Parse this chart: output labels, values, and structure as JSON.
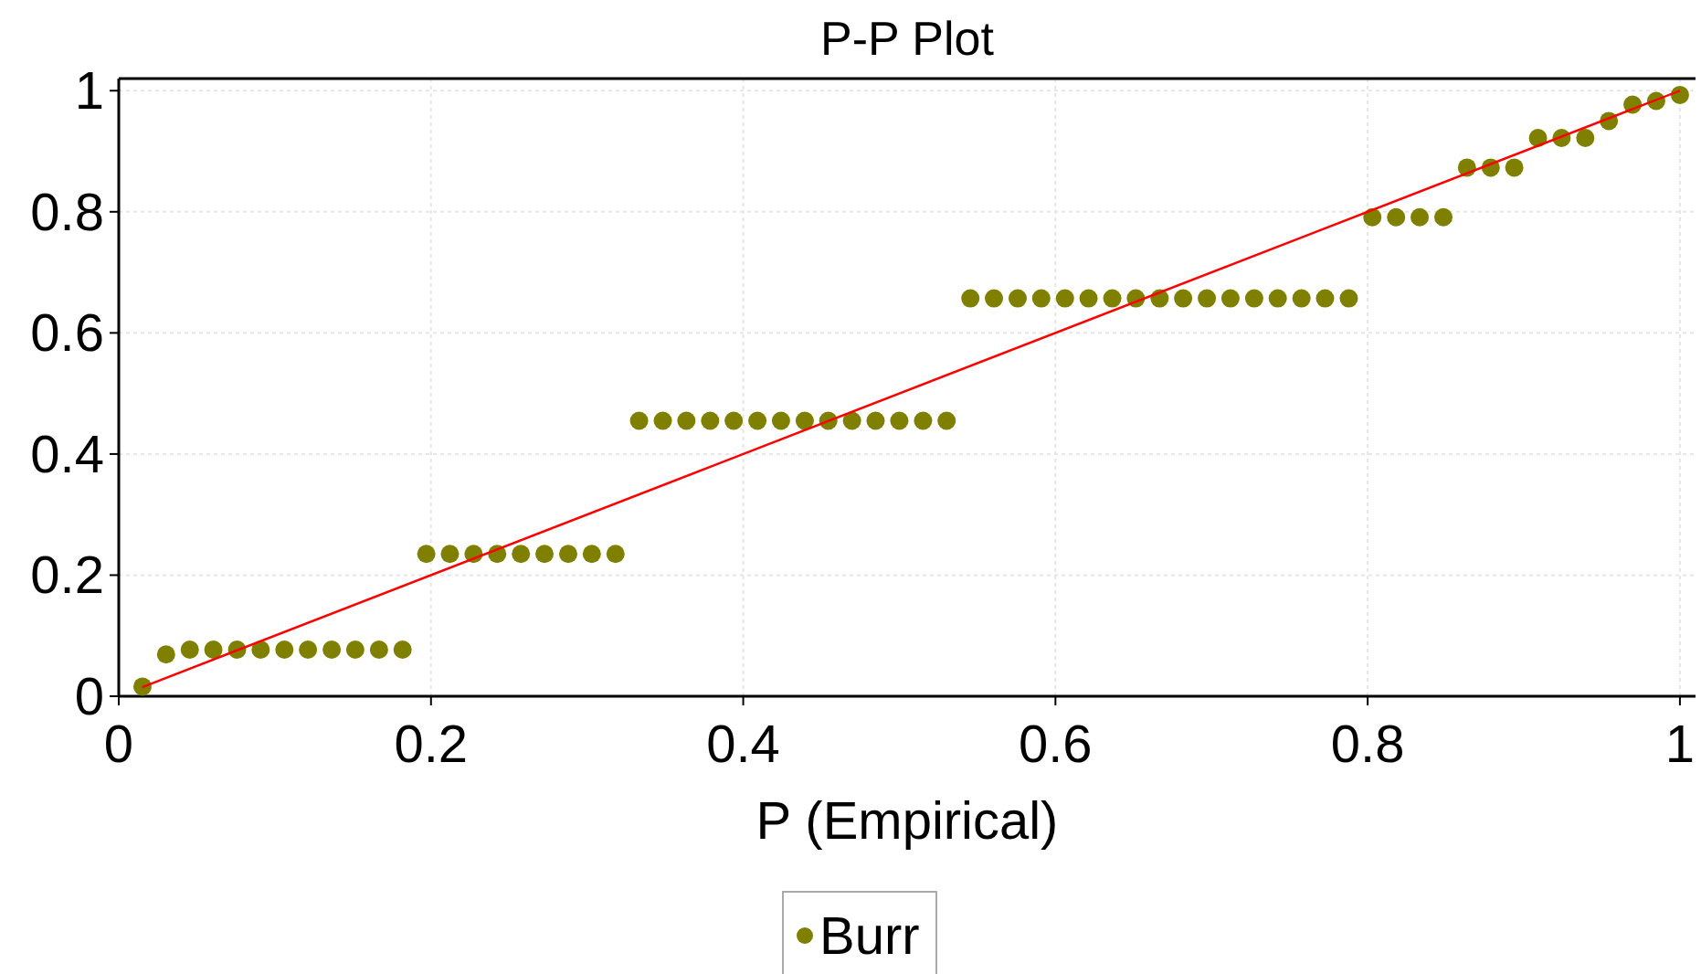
{
  "chart_data": {
    "type": "scatter",
    "title": "P-P Plot",
    "xlabel": "P (Empirical)",
    "xlim": [
      0,
      1.01
    ],
    "ylim": [
      0,
      1.02
    ],
    "xticks": [
      0,
      0.2,
      0.4,
      0.6,
      0.8,
      1
    ],
    "yticks": [
      0,
      0.2,
      0.4,
      0.6,
      0.8,
      1
    ],
    "grid": true,
    "legend": "bottom",
    "marker": "circle",
    "series": [
      {
        "name": "Burr",
        "color": "#808000",
        "x": [
          0.0152,
          0.0303,
          0.0455,
          0.0606,
          0.0758,
          0.0909,
          0.1061,
          0.1212,
          0.1364,
          0.1515,
          0.1667,
          0.1818,
          0.197,
          0.2121,
          0.2273,
          0.2424,
          0.2576,
          0.2727,
          0.2879,
          0.303,
          0.3182,
          0.3333,
          0.3485,
          0.3636,
          0.3788,
          0.3939,
          0.4091,
          0.4242,
          0.4394,
          0.4545,
          0.4697,
          0.4848,
          0.5,
          0.5152,
          0.5303,
          0.5455,
          0.5606,
          0.5758,
          0.5909,
          0.6061,
          0.6212,
          0.6364,
          0.6515,
          0.6667,
          0.6818,
          0.697,
          0.7121,
          0.7273,
          0.7424,
          0.7576,
          0.7727,
          0.7879,
          0.803,
          0.8182,
          0.8333,
          0.8485,
          0.8636,
          0.8788,
          0.8939,
          0.9091,
          0.9242,
          0.9394,
          0.9545,
          0.9697,
          0.9848,
          1
        ],
        "values": [
          0.016,
          0.069,
          0.077,
          0.077,
          0.077,
          0.077,
          0.077,
          0.077,
          0.077,
          0.077,
          0.077,
          0.077,
          0.235,
          0.235,
          0.235,
          0.235,
          0.235,
          0.235,
          0.235,
          0.235,
          0.235,
          0.455,
          0.455,
          0.455,
          0.455,
          0.455,
          0.455,
          0.455,
          0.455,
          0.455,
          0.455,
          0.455,
          0.455,
          0.455,
          0.455,
          0.657,
          0.657,
          0.657,
          0.657,
          0.657,
          0.657,
          0.657,
          0.657,
          0.657,
          0.657,
          0.657,
          0.657,
          0.657,
          0.657,
          0.657,
          0.657,
          0.657,
          0.791,
          0.791,
          0.791,
          0.791,
          0.873,
          0.873,
          0.873,
          0.922,
          0.922,
          0.922,
          0.95,
          0.977,
          0.983,
          0.993
        ]
      },
      {
        "color": "#ff0000",
        "type": "line",
        "marker": "none",
        "x": [
          0.015,
          1
        ],
        "values": [
          0.015,
          1
        ]
      }
    ]
  }
}
